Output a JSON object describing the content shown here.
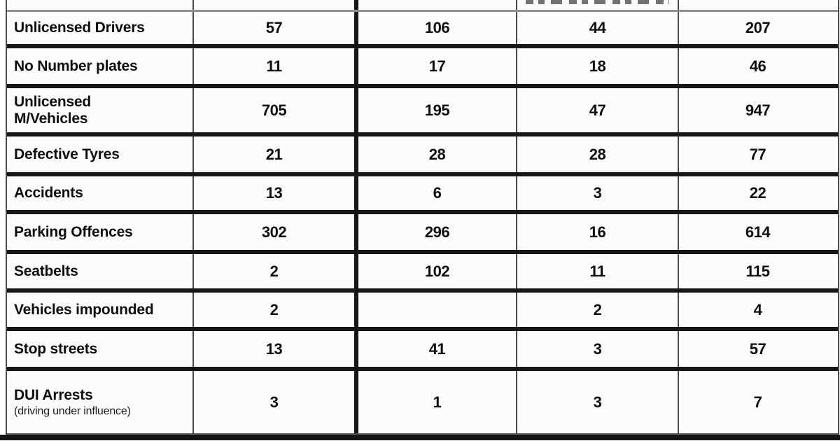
{
  "table": {
    "description_colors": {
      "thick_border": "#161616",
      "thin_border": "#4a4a4a",
      "partial_header_border": "#8f8f8f",
      "cell_background": "#fcfcfc",
      "text": "#0e0e0e"
    },
    "rows": [
      {
        "label": "Unlicensed Drivers",
        "values": [
          "57",
          "106",
          "44",
          "207"
        ]
      },
      {
        "label": "No Number plates",
        "values": [
          "11",
          "17",
          "18",
          "46"
        ]
      },
      {
        "label": "Unlicensed\nM/Vehicles",
        "values": [
          "705",
          "195",
          "47",
          "947"
        ]
      },
      {
        "label": "Defective Tyres",
        "values": [
          "21",
          "28",
          "28",
          "77"
        ]
      },
      {
        "label": "Accidents",
        "values": [
          "13",
          "6",
          "3",
          "22"
        ]
      },
      {
        "label": "Parking Offences",
        "values": [
          "302",
          "296",
          "16",
          "614"
        ]
      },
      {
        "label": "Seatbelts",
        "values": [
          "2",
          "102",
          "11",
          "115"
        ]
      },
      {
        "label": "Vehicles impounded",
        "values": [
          "2",
          "",
          "2",
          "4"
        ]
      },
      {
        "label": "Stop streets",
        "values": [
          "13",
          "41",
          "3",
          "57"
        ]
      },
      {
        "label": "DUI Arrests",
        "sublabel": "(driving under influence)",
        "values": [
          "3",
          "1",
          "3",
          "7"
        ]
      }
    ]
  }
}
